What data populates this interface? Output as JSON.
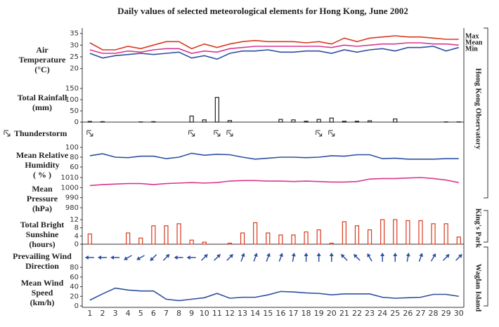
{
  "chart_data": {
    "type": "multi-panel",
    "title": "Daily values of selected meteorological elements for Hong Kong, June 2002",
    "days": [
      1,
      2,
      3,
      4,
      5,
      6,
      7,
      8,
      9,
      10,
      11,
      12,
      13,
      14,
      15,
      16,
      17,
      18,
      19,
      20,
      21,
      22,
      23,
      24,
      25,
      26,
      27,
      28,
      29,
      30
    ],
    "xlim": [
      0.4,
      30.4
    ],
    "panels": [
      {
        "type": "line",
        "label": [
          "Air",
          "Temperature",
          "(°C)"
        ],
        "ylim": [
          19,
          37
        ],
        "yticks": [
          20,
          25,
          30,
          35
        ],
        "series": [
          {
            "name": "Max",
            "color": "#d9381e",
            "values": [
              31,
              28,
              28,
              29.5,
              28.5,
              30,
              31.5,
              31.5,
              28.5,
              30.5,
              29,
              30.5,
              31.5,
              32,
              31.5,
              31.5,
              31.5,
              31,
              31.5,
              30.5,
              33,
              31.5,
              33,
              33.5,
              34,
              33.5,
              33.5,
              33,
              32.5,
              32.5
            ]
          },
          {
            "name": "Mean",
            "color": "#d8378f",
            "values": [
              28,
              26.5,
              26.5,
              27.5,
              27,
              28,
              28.5,
              28.5,
              26.5,
              27.5,
              27,
              28.5,
              29,
              29.5,
              29.5,
              29.5,
              29.5,
              29.5,
              29.5,
              29,
              30,
              29.5,
              30,
              30.5,
              30.5,
              31,
              31,
              30.5,
              30.5,
              30
            ]
          },
          {
            "name": "Min",
            "color": "#2d4fa0",
            "values": [
              26.5,
              24.5,
              25.5,
              26,
              26.5,
              26,
              26.5,
              27,
              24.5,
              25.5,
              24,
              26.5,
              27.5,
              27.5,
              28,
              27,
              27,
              27.5,
              27.5,
              26.5,
              28,
              27,
              28,
              28.5,
              27.5,
              29,
              29,
              29.5,
              27.5,
              29
            ]
          }
        ]
      },
      {
        "type": "bar",
        "label": [
          "Total Rainfall",
          "(mm)"
        ],
        "ylim": [
          0,
          150
        ],
        "yticks": [
          0,
          50,
          100,
          150
        ],
        "color": "#222222",
        "values": [
          3,
          2,
          0,
          0,
          1,
          2,
          0,
          0,
          27,
          10,
          110,
          7,
          0,
          0,
          0,
          12,
          10,
          4,
          12,
          18,
          4,
          4,
          6,
          0,
          14,
          0,
          0,
          0,
          1,
          1
        ]
      },
      {
        "type": "events",
        "label": [
          "Thunderstorm"
        ],
        "color": "#333333",
        "days": [
          1,
          9,
          11,
          12,
          19,
          20
        ]
      },
      {
        "type": "line",
        "label": [
          "Mean Relative",
          "Humidity",
          "( % )"
        ],
        "ylim": [
          60,
          100
        ],
        "yticks": [
          60,
          80,
          100
        ],
        "series": [
          {
            "color": "#2d4fa0",
            "values": [
              83,
              87,
              80,
              79,
              82,
              82,
              77,
              80,
              88,
              84,
              86,
              85,
              80,
              76,
              78,
              80,
              80,
              79,
              80,
              83,
              82,
              85,
              85,
              77,
              78,
              76,
              76,
              76,
              77,
              77
            ]
          }
        ]
      },
      {
        "type": "line",
        "label": [
          "Mean",
          "Pressure",
          "(hPa)"
        ],
        "ylim": [
          980,
          1010
        ],
        "yticks": [
          980,
          990,
          1000,
          1010
        ],
        "series": [
          {
            "color": "#d8378f",
            "values": [
              1002,
              1003,
              1003.5,
              1004,
              1004,
              1003,
              1004,
              1004.5,
              1005,
              1004.5,
              1005,
              1006.5,
              1007,
              1007,
              1006.5,
              1006.5,
              1006,
              1006.5,
              1006,
              1005.5,
              1005.5,
              1006,
              1008.5,
              1009,
              1009,
              1009.5,
              1010,
              1009,
              1007.5,
              1005
            ]
          }
        ]
      },
      {
        "type": "bar",
        "label": [
          "Total Bright",
          "Sunshine",
          "(hours)"
        ],
        "ylim": [
          0,
          12
        ],
        "yticks": [
          0,
          4,
          8,
          12
        ],
        "color": "#d9381e",
        "values": [
          5,
          0,
          0,
          5.5,
          3,
          9,
          9,
          10,
          2,
          1,
          0,
          0.5,
          5.5,
          10.5,
          5.5,
          4.5,
          4.5,
          6,
          7,
          0.5,
          11,
          9,
          7,
          12,
          12,
          11.5,
          11.5,
          10,
          10,
          3.5
        ]
      },
      {
        "type": "arrows",
        "label": [
          "Prevailing Wind",
          "Direction"
        ],
        "color": "#2d4fa0",
        "values": [
          90,
          90,
          90,
          60,
          60,
          45,
          225,
          90,
          90,
          225,
          225,
          225,
          200,
          200,
          200,
          200,
          190,
          180,
          180,
          180,
          135,
          135,
          150,
          180,
          180,
          190,
          200,
          210,
          225,
          225
        ]
      },
      {
        "type": "line",
        "label": [
          "Mean Wind",
          "Speed",
          "(km/h)"
        ],
        "ylim": [
          0,
          80
        ],
        "yticks": [
          0,
          20,
          40,
          60,
          80
        ],
        "series": [
          {
            "color": "#2d4fa0",
            "values": [
              12,
              25,
              37,
              33,
              31,
              31,
              14,
              11,
              14,
              17,
              26,
              16,
              18,
              18,
              23,
              30,
              29,
              27,
              26,
              23,
              25,
              25,
              25,
              18,
              16,
              17,
              18,
              24,
              24,
              20
            ]
          }
        ]
      }
    ],
    "stations": [
      "Hong Kong Observatory",
      "King's Park",
      "Waglan Island"
    ]
  }
}
